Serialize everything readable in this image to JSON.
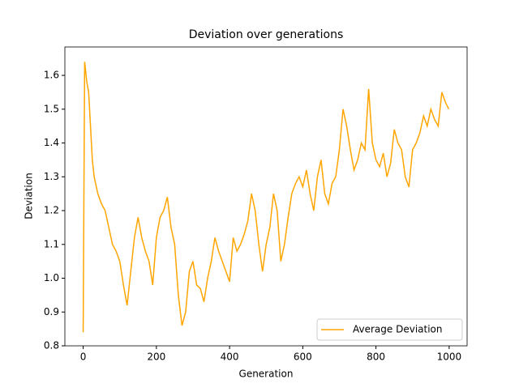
{
  "chart_data": {
    "type": "line",
    "title": "Deviation over generations",
    "x_label": "Generation",
    "y_label": "Deviation",
    "x": [
      0,
      4,
      10,
      15,
      20,
      25,
      30,
      40,
      50,
      60,
      70,
      80,
      90,
      100,
      110,
      120,
      130,
      140,
      150,
      160,
      170,
      180,
      190,
      200,
      210,
      220,
      230,
      240,
      250,
      260,
      270,
      280,
      290,
      300,
      310,
      320,
      330,
      340,
      350,
      360,
      370,
      380,
      390,
      400,
      410,
      420,
      430,
      440,
      450,
      460,
      470,
      480,
      490,
      500,
      510,
      520,
      530,
      540,
      550,
      560,
      570,
      580,
      590,
      600,
      610,
      620,
      630,
      640,
      650,
      660,
      670,
      680,
      690,
      700,
      710,
      720,
      730,
      740,
      750,
      760,
      770,
      780,
      790,
      800,
      810,
      820,
      830,
      840,
      850,
      860,
      870,
      880,
      890,
      900,
      910,
      920,
      930,
      940,
      950,
      960,
      970,
      980,
      990,
      999
    ],
    "series": [
      {
        "name": "Average Deviation",
        "color": "#ffa500",
        "values": [
          0.84,
          1.64,
          1.58,
          1.55,
          1.45,
          1.35,
          1.3,
          1.25,
          1.22,
          1.2,
          1.15,
          1.1,
          1.08,
          1.05,
          0.98,
          0.92,
          1.02,
          1.12,
          1.18,
          1.12,
          1.08,
          1.05,
          0.98,
          1.12,
          1.18,
          1.2,
          1.24,
          1.15,
          1.1,
          0.95,
          0.86,
          0.9,
          1.02,
          1.05,
          0.98,
          0.97,
          0.93,
          1.0,
          1.05,
          1.12,
          1.08,
          1.05,
          1.02,
          0.99,
          1.12,
          1.08,
          1.1,
          1.13,
          1.17,
          1.25,
          1.2,
          1.1,
          1.02,
          1.1,
          1.15,
          1.25,
          1.2,
          1.05,
          1.1,
          1.18,
          1.25,
          1.28,
          1.3,
          1.27,
          1.32,
          1.25,
          1.2,
          1.3,
          1.35,
          1.25,
          1.22,
          1.28,
          1.3,
          1.38,
          1.5,
          1.45,
          1.38,
          1.32,
          1.35,
          1.4,
          1.38,
          1.56,
          1.4,
          1.35,
          1.33,
          1.37,
          1.3,
          1.34,
          1.44,
          1.4,
          1.38,
          1.3,
          1.27,
          1.38,
          1.4,
          1.43,
          1.48,
          1.45,
          1.5,
          1.47,
          1.45,
          1.55,
          1.52,
          1.5
        ]
      }
    ],
    "xlim": [
      -50,
      1049
    ],
    "ylim": [
      0.8,
      1.684
    ],
    "xticks": [
      0,
      200,
      400,
      600,
      800,
      1000
    ],
    "yticks": [
      0.8,
      0.9,
      {
        "value": 1.0,
        "label": "1.0"
      },
      1.1,
      1.2,
      1.3,
      1.4,
      1.5,
      1.6
    ],
    "legend": "lower right"
  }
}
